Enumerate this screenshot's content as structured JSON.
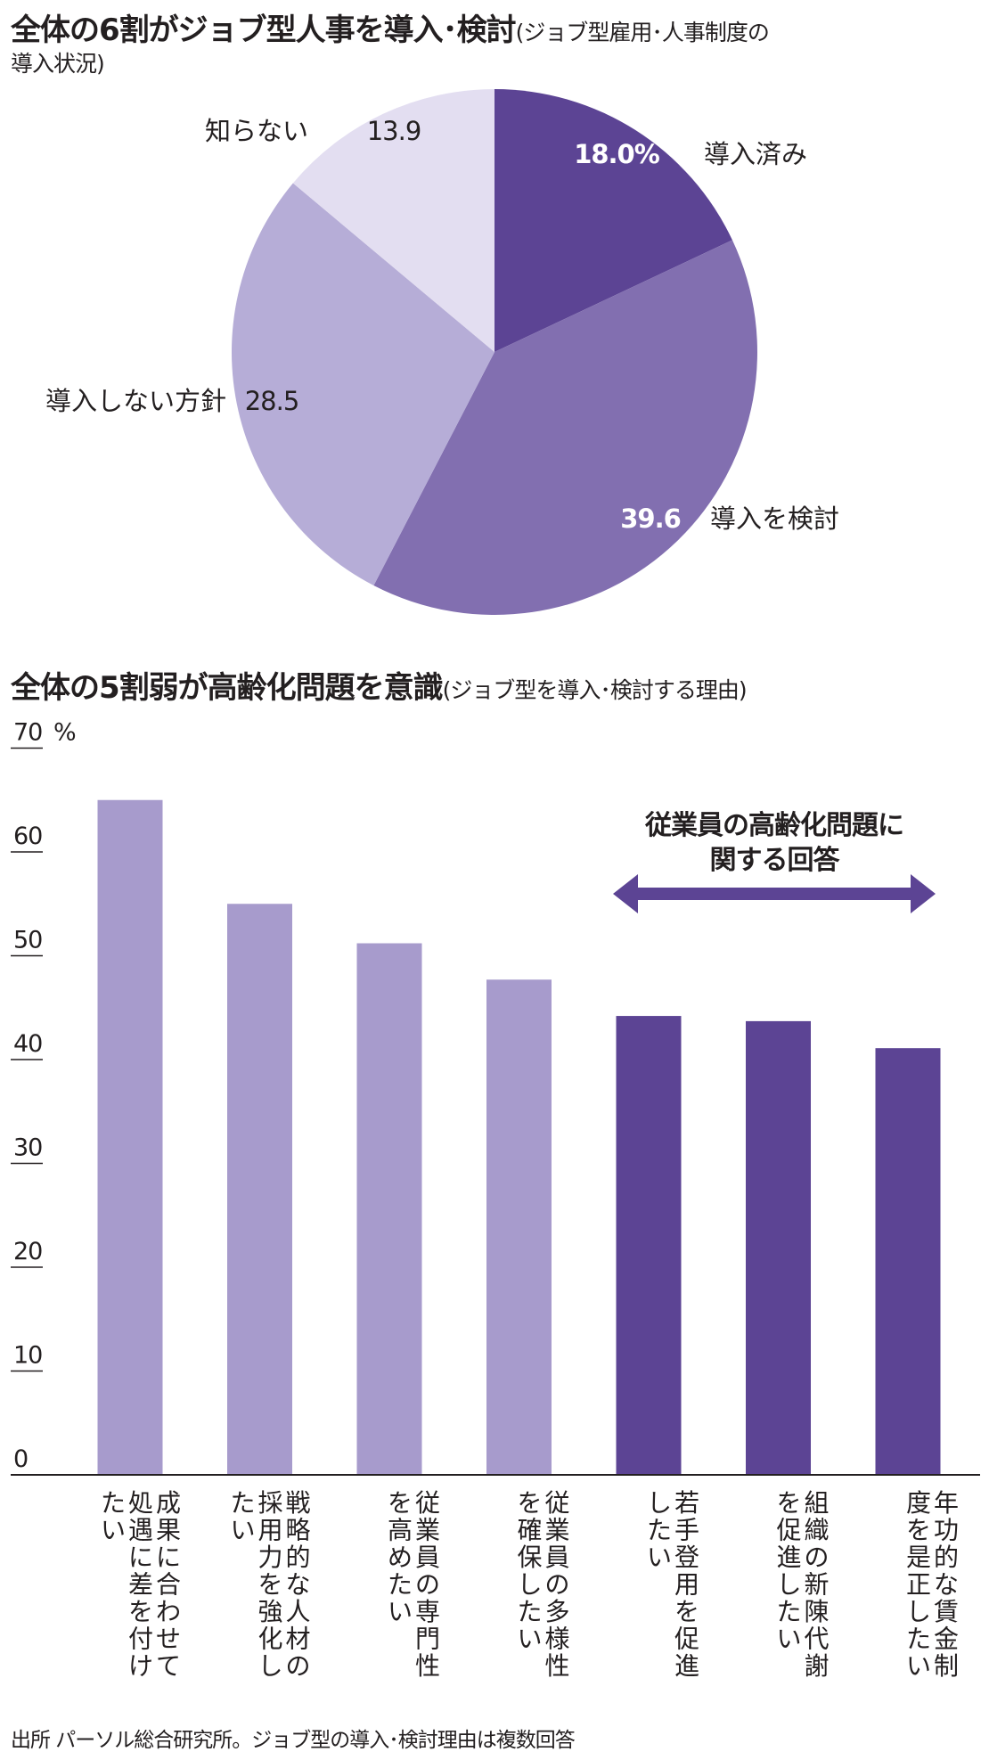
{
  "pie_title": "全体の6割がジョブ型人事を導入･検討",
  "pie_subtitle_1": "(ジョブ型雇用･人事制度の",
  "pie_subtitle_2": "導入状況)",
  "bar_title": "全体の5割弱が高齢化問題を意識",
  "bar_subtitle": "(ジョブ型を導入･検討する理由)",
  "source": "出所 パーソル総合研究所。ジョブ型の導入･検討理由は複数回答",
  "colors": {
    "dark": "#5c4494",
    "medium": "#826fb0",
    "light": "#b6add7",
    "lightest": "#e3def1",
    "bar_light": "#a79bcc",
    "text": "#231f20"
  },
  "chart_data": [
    {
      "type": "pie",
      "slices": [
        {
          "label": "導入済み",
          "value": 18.0,
          "value_label": "18.0%",
          "color": "#5c4494"
        },
        {
          "label": "導入を検討",
          "value": 39.6,
          "value_label": "39.6",
          "color": "#826fb0"
        },
        {
          "label": "導入しない方針",
          "value": 28.5,
          "value_label": "28.5",
          "color": "#b6add7"
        },
        {
          "label": "知らない",
          "value": 13.9,
          "value_label": "13.9",
          "color": "#e3def1"
        }
      ]
    },
    {
      "type": "bar",
      "categories": [
        "成果に合わせて処遇に差を付けたい",
        "戦略的な人材の採用力を強化したい",
        "従業員の専門性を高めたい",
        "従業員の多様性を確保したい",
        "若手登用を促進したい",
        "組織の新陳代謝を促進したい",
        "年功的な賃金制度を是正したい"
      ],
      "category_lines": [
        [
          "成果に合わせて",
          "処遇に差を付け",
          "たい"
        ],
        [
          "戦略的な人材の",
          "採用力を強化し",
          "たい"
        ],
        [
          "従業員の専門性",
          "を高めたい"
        ],
        [
          "従業員の多様性",
          "を確保したい"
        ],
        [
          "若手登用を促進",
          "したい"
        ],
        [
          "組織の新陳代謝",
          "を促進したい"
        ],
        [
          "年功的な賃金制",
          "度を是正したい"
        ]
      ],
      "values": [
        65,
        55,
        51.2,
        47.7,
        44.2,
        43.7,
        41.1
      ],
      "highlight": [
        false,
        false,
        false,
        false,
        true,
        true,
        true
      ],
      "ylim": [
        0,
        70
      ],
      "yticks": [
        0,
        10,
        20,
        30,
        40,
        50,
        60,
        70
      ],
      "unit": "%",
      "annotation_line1": "従業員の高齢化問題に",
      "annotation_line2": "関する回答"
    }
  ]
}
